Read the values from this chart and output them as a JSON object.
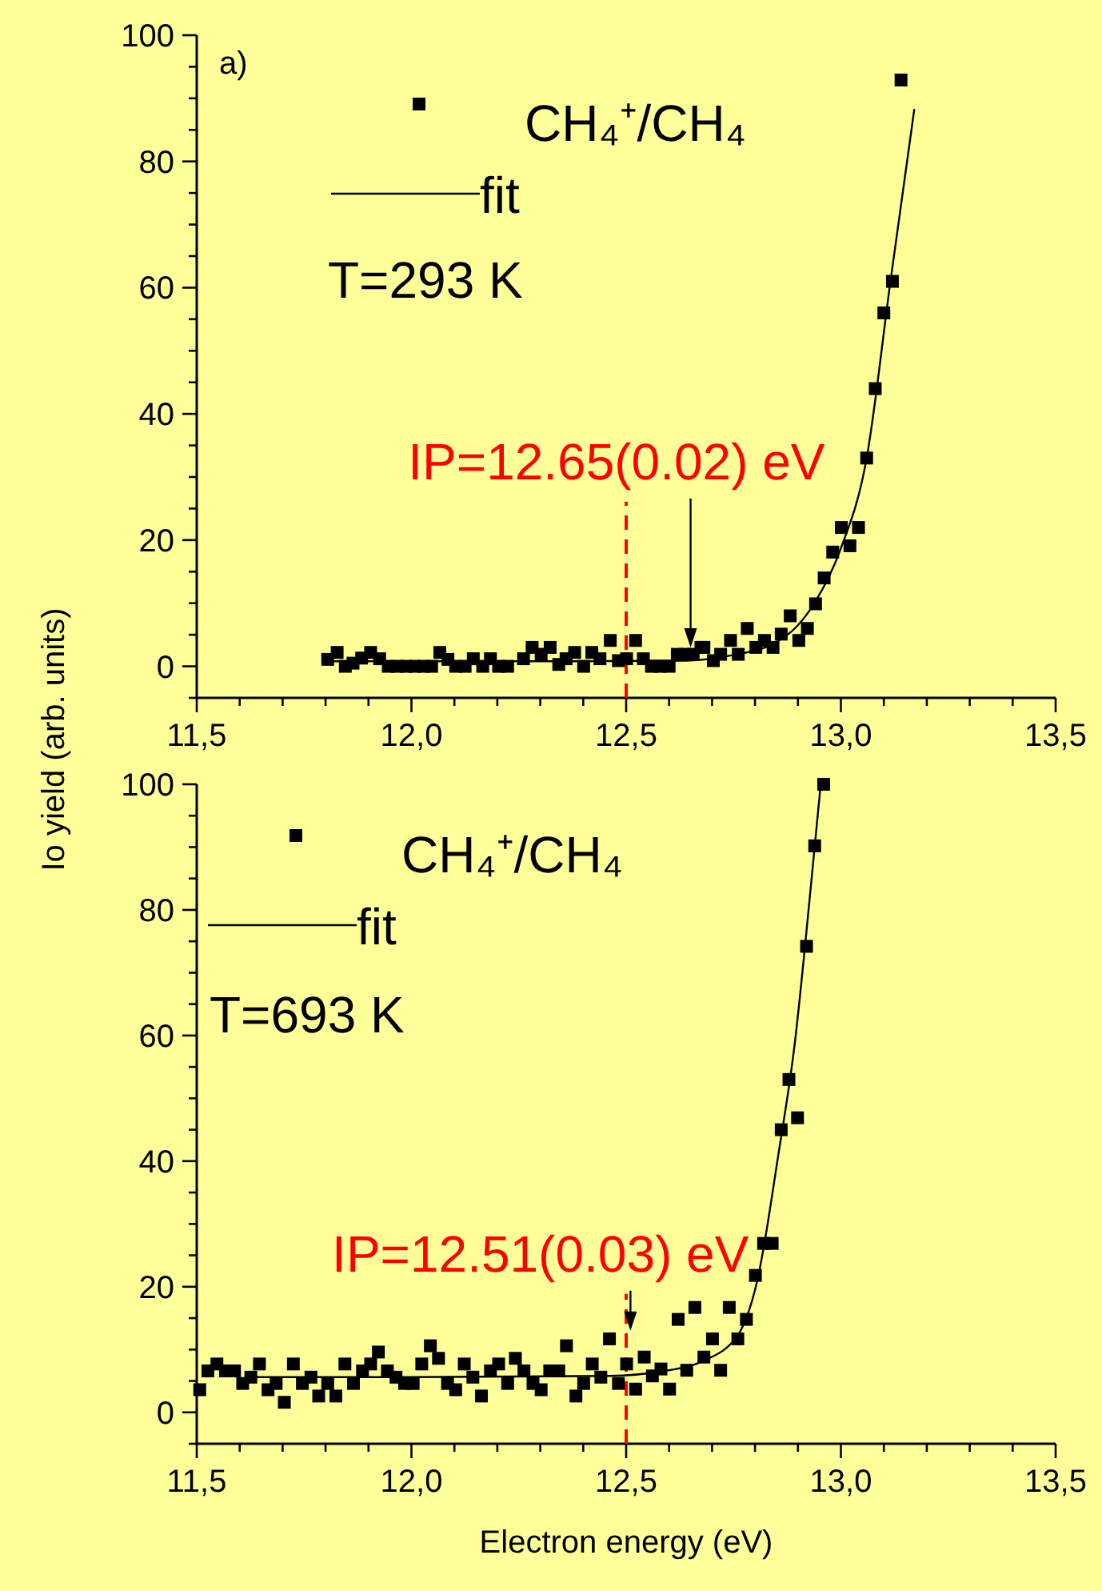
{
  "chart_data": [
    {
      "type": "scatter",
      "ylabel": "Io yield (arb. units)",
      "legend": "top left",
      "xlim": [
        11.5,
        13.5
      ],
      "ylim": [
        -5,
        100
      ],
      "xticks": [
        {
          "value": 11.5,
          "label": "11,5"
        },
        {
          "value": 11.6,
          "label": null
        },
        {
          "value": 11.7,
          "label": null
        },
        {
          "value": 11.8,
          "label": null
        },
        {
          "value": 11.9,
          "label": null
        },
        {
          "value": 12.0,
          "label": "12,0"
        },
        {
          "value": 12.1,
          "label": null
        },
        {
          "value": 12.2,
          "label": null
        },
        {
          "value": 12.3,
          "label": null
        },
        {
          "value": 12.4,
          "label": null
        },
        {
          "value": 12.5,
          "label": "12,5"
        },
        {
          "value": 12.6,
          "label": null
        },
        {
          "value": 12.7,
          "label": null
        },
        {
          "value": 12.8,
          "label": null
        },
        {
          "value": 12.9,
          "label": null
        },
        {
          "value": 13.0,
          "label": "13,0"
        },
        {
          "value": 13.1,
          "label": null
        },
        {
          "value": 13.2,
          "label": null
        },
        {
          "value": 13.3,
          "label": null
        },
        {
          "value": 13.4,
          "label": null
        },
        {
          "value": 13.5,
          "label": "13,5"
        }
      ],
      "yticks": [
        {
          "value": -5,
          "label": null
        },
        0,
        {
          "value": 5,
          "label": null
        },
        {
          "value": 10,
          "label": null
        },
        {
          "value": 15,
          "label": null
        },
        20,
        {
          "value": 25,
          "label": null
        },
        {
          "value": 30,
          "label": null
        },
        {
          "value": 35,
          "label": null
        },
        40,
        {
          "value": 45,
          "label": null
        },
        {
          "value": 50,
          "label": null
        },
        {
          "value": 55,
          "label": null
        },
        60,
        {
          "value": 65,
          "label": null
        },
        {
          "value": 70,
          "label": null
        },
        {
          "value": 75,
          "label": null
        },
        80,
        {
          "value": 85,
          "label": null
        },
        {
          "value": 90,
          "label": null
        },
        {
          "value": 95,
          "label": null
        },
        100
      ],
      "series": [
        {
          "name": "CH₄⁺/CH₄",
          "marker": "square",
          "color": "#000000",
          "x": [
            11.805,
            11.827,
            11.846,
            11.864,
            11.884,
            11.905,
            11.926,
            11.946,
            11.967,
            11.988,
            12.008,
            12.029,
            12.047,
            12.066,
            12.085,
            12.103,
            12.125,
            12.144,
            12.166,
            12.184,
            12.203,
            12.224,
            12.261,
            12.281,
            12.302,
            12.323,
            12.343,
            12.36,
            12.38,
            12.401,
            12.42,
            12.439,
            12.463,
            12.482,
            12.501,
            12.522,
            12.54,
            12.559,
            12.579,
            12.6,
            12.619,
            12.637,
            12.656,
            12.674,
            12.681,
            12.703,
            12.72,
            12.743,
            12.761,
            12.782,
            12.802,
            12.822,
            12.842,
            12.861,
            12.882,
            12.902,
            12.922,
            12.941,
            12.961,
            12.981,
            13.001,
            13.021,
            13.041,
            13.06,
            13.08,
            13.1,
            13.12,
            13.14
          ],
          "values": [
            1.1,
            2.2,
            0,
            0.5,
            1.3,
            2.2,
            1.2,
            0,
            0,
            0,
            0,
            0,
            0,
            2.2,
            1.1,
            0,
            0,
            1.2,
            0,
            1.2,
            0,
            0,
            1.2,
            3,
            1.9,
            3,
            0.3,
            1.2,
            2.2,
            0,
            2.2,
            1.2,
            4.1,
            0.9,
            1.2,
            4.1,
            1.2,
            0,
            0,
            0,
            1.9,
            1.9,
            1.9,
            3,
            3,
            0.9,
            1.9,
            4.1,
            1.9,
            6,
            3,
            4.1,
            3,
            5.1,
            8,
            4.1,
            6,
            9.9,
            14,
            18.1,
            22,
            19.1,
            22,
            33,
            44,
            56,
            61,
            92.9
          ]
        },
        {
          "name": "fit",
          "type": "line",
          "line_style": "solid",
          "color": "#000000",
          "x": [
            11.8,
            12.0,
            12.4,
            12.64,
            12.75,
            12.84,
            12.9,
            12.94,
            13.0,
            13.06,
            13.115,
            13.171
          ],
          "values": [
            0.8,
            0.8,
            0.8,
            0.9,
            1.8,
            3.5,
            6.5,
            10.2,
            18.7,
            33,
            60.8,
            88.3
          ]
        }
      ],
      "ref_lines": [
        {
          "axis": "x",
          "value": 12.5,
          "color": "#ff0000",
          "line_style": "dashed"
        }
      ],
      "annotations": [
        "a)",
        "T=293 K",
        {
          "text": "IP=12.65(0.02) eV",
          "x": 12.65,
          "y": 3
        }
      ]
    },
    {
      "type": "scatter",
      "xlabel": "Electron energy (eV)",
      "legend": "top left",
      "xlim": [
        11.5,
        13.5
      ],
      "ylim": [
        -5,
        100
      ],
      "xticks": [
        {
          "value": 11.5,
          "label": "11,5"
        },
        {
          "value": 11.6,
          "label": null
        },
        {
          "value": 11.7,
          "label": null
        },
        {
          "value": 11.8,
          "label": null
        },
        {
          "value": 11.9,
          "label": null
        },
        {
          "value": 12.0,
          "label": "12,0"
        },
        {
          "value": 12.1,
          "label": null
        },
        {
          "value": 12.2,
          "label": null
        },
        {
          "value": 12.3,
          "label": null
        },
        {
          "value": 12.4,
          "label": null
        },
        {
          "value": 12.5,
          "label": "12,5"
        },
        {
          "value": 12.6,
          "label": null
        },
        {
          "value": 12.7,
          "label": null
        },
        {
          "value": 12.8,
          "label": null
        },
        {
          "value": 12.9,
          "label": null
        },
        {
          "value": 13.0,
          "label": "13,0"
        },
        {
          "value": 13.1,
          "label": null
        },
        {
          "value": 13.2,
          "label": null
        },
        {
          "value": 13.3,
          "label": null
        },
        {
          "value": 13.4,
          "label": null
        },
        {
          "value": 13.5,
          "label": "13,5"
        }
      ],
      "yticks": [
        {
          "value": -5,
          "label": null
        },
        0,
        {
          "value": 5,
          "label": null
        },
        {
          "value": 10,
          "label": null
        },
        {
          "value": 15,
          "label": null
        },
        20,
        {
          "value": 25,
          "label": null
        },
        {
          "value": 30,
          "label": null
        },
        {
          "value": 35,
          "label": null
        },
        40,
        {
          "value": 45,
          "label": null
        },
        {
          "value": 50,
          "label": null
        },
        {
          "value": 55,
          "label": null
        },
        60,
        {
          "value": 65,
          "label": null
        },
        {
          "value": 70,
          "label": null
        },
        {
          "value": 75,
          "label": null
        },
        80,
        {
          "value": 85,
          "label": null
        },
        {
          "value": 90,
          "label": null
        },
        {
          "value": 95,
          "label": null
        },
        100
      ],
      "series": [
        {
          "name": "CH₄⁺/CH₄",
          "marker": "square",
          "color": "#000000",
          "x": [
            11.507,
            11.526,
            11.547,
            11.567,
            11.588,
            11.607,
            11.626,
            11.646,
            11.666,
            11.685,
            11.704,
            11.725,
            11.746,
            11.766,
            11.784,
            11.805,
            11.824,
            11.845,
            11.865,
            11.886,
            11.905,
            11.923,
            11.944,
            11.964,
            11.984,
            12.004,
            12.024,
            12.044,
            12.063,
            12.084,
            12.103,
            12.123,
            12.143,
            12.163,
            12.184,
            12.203,
            12.224,
            12.242,
            12.262,
            12.283,
            12.302,
            12.322,
            12.343,
            12.361,
            12.383,
            12.401,
            12.421,
            12.441,
            12.461,
            12.482,
            12.501,
            12.522,
            12.542,
            12.561,
            12.581,
            12.601,
            12.621,
            12.641,
            12.66,
            12.681,
            12.701,
            12.72,
            12.74,
            12.76,
            12.78,
            12.801,
            12.82,
            12.84,
            12.861,
            12.879,
            12.899,
            12.92,
            12.939,
            12.96
          ],
          "values": [
            3.6,
            6.6,
            7.7,
            6.6,
            6.6,
            4.6,
            5.6,
            7.7,
            3.6,
            4.6,
            1.6,
            7.7,
            4.6,
            5.6,
            2.6,
            4.6,
            2.6,
            7.7,
            4.6,
            6.6,
            7.7,
            9.6,
            6.6,
            5.6,
            4.6,
            4.6,
            7.7,
            10.6,
            8.6,
            4.6,
            3.6,
            7.7,
            5.6,
            2.6,
            6.6,
            7.7,
            4.6,
            8.6,
            6.6,
            4.6,
            3.6,
            6.6,
            6.6,
            10.6,
            2.6,
            4.6,
            7.7,
            5.6,
            11.7,
            4.6,
            7.7,
            3.7,
            8.8,
            5.8,
            6.9,
            3.7,
            14.8,
            6.7,
            16.7,
            8.8,
            11.7,
            6.7,
            16.7,
            11.7,
            14.8,
            21.8,
            26.9,
            26.9,
            45,
            53,
            46.9,
            74.2,
            90.2,
            100
          ]
        },
        {
          "name": "fit",
          "type": "line",
          "line_style": "solid",
          "color": "#000000",
          "x": [
            11.62,
            12.0,
            12.46,
            12.58,
            12.68,
            12.761,
            12.805,
            12.855,
            12.892,
            12.929,
            12.953
          ],
          "values": [
            5.6,
            5.6,
            5.8,
            6.5,
            8.2,
            12.4,
            20.9,
            41.3,
            58.4,
            83,
            100
          ]
        }
      ],
      "ref_lines": [
        {
          "axis": "x",
          "value": 12.5,
          "color": "#ff0000",
          "line_style": "dashed"
        }
      ],
      "annotations": [
        "T=693 K",
        {
          "text": "IP=12.51(0.03) eV",
          "x": 12.51,
          "y": 13
        }
      ]
    }
  ]
}
